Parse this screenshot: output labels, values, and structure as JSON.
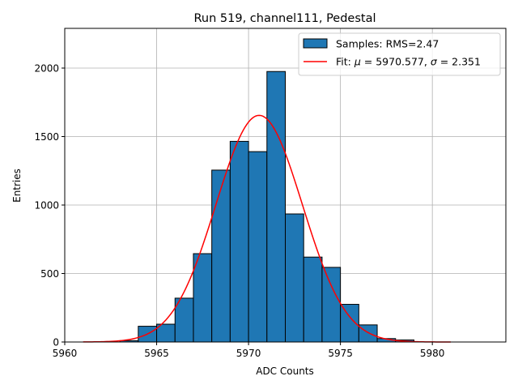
{
  "chart_data": {
    "type": "bar",
    "title": "Run 519, channel111, Pedestal",
    "xlabel": "ADC Counts",
    "ylabel": "Entries",
    "xlim": [
      5960,
      5984
    ],
    "ylim": [
      0,
      2290
    ],
    "xticks": [
      5960,
      5965,
      5970,
      5975,
      5980
    ],
    "yticks": [
      0,
      500,
      1000,
      1500,
      2000
    ],
    "grid": true,
    "legend_position": "top-right",
    "histogram": {
      "name": "Samples: RMS=2.47",
      "color": "#1f77b4",
      "bin_edges": [
        5963,
        5964,
        5965,
        5966,
        5967,
        5968,
        5969,
        5970,
        5971,
        5972,
        5973,
        5974,
        5975,
        5976,
        5977,
        5978,
        5979
      ],
      "counts": [
        10,
        115,
        130,
        320,
        645,
        1255,
        1465,
        1390,
        1975,
        935,
        620,
        545,
        275,
        125,
        25,
        15
      ]
    },
    "fit": {
      "name_prefix": "Fit: ",
      "name_mu_symbol": "μ",
      "name_mu_value": " = 5970.577, ",
      "name_sigma_symbol": "σ",
      "name_sigma_value": " = 2.351",
      "color": "#ff0000",
      "mu": 5970.577,
      "sigma": 2.351,
      "amplitude": 1655,
      "x_range": [
        5961,
        5981
      ]
    }
  }
}
